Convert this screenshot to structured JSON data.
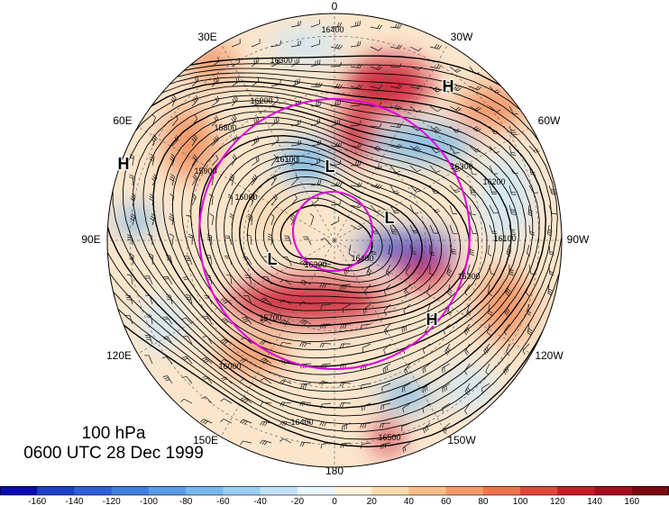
{
  "map": {
    "projection": "north polar stereographic",
    "longitude_labels": [
      "0",
      "30W",
      "60W",
      "90W",
      "120W",
      "150W",
      "180",
      "150E",
      "120E",
      "90E",
      "60E",
      "30E"
    ],
    "contour_labels": [
      "16400",
      "16300",
      "16200",
      "16100",
      "16000",
      "15900",
      "15800",
      "15700",
      "16300",
      "16400",
      "16300",
      "16100",
      "16200",
      "16300",
      "16000",
      "16400",
      "16500"
    ],
    "pressure_centers": [
      {
        "type": "H",
        "region": "north Atlantic"
      },
      {
        "type": "H",
        "region": "northern Eurasia"
      },
      {
        "type": "L",
        "region": "north Europe"
      },
      {
        "type": "L",
        "region": "Canadian Arctic"
      },
      {
        "type": "L",
        "region": "Siberia"
      },
      {
        "type": "H",
        "region": "Alaska / north Pacific"
      }
    ],
    "colors": {
      "strong_positive": "#c8102a",
      "moderate_positive": "#f08a5a",
      "weak_positive": "#fbd9b5",
      "weak_negative": "#cde8f8",
      "moderate_negative": "#6fb4ea",
      "strong_negative": "#1f3fc4",
      "circles": "#e000e0"
    }
  },
  "caption": {
    "level": "100 hPa",
    "datetime": "0600 UTC 28 Dec 1999"
  },
  "colorbar": {
    "ticks": [
      "-160",
      "-140",
      "-120",
      "-100",
      "-80",
      "-60",
      "-40",
      "-20",
      "0",
      "20",
      "40",
      "60",
      "80",
      "100",
      "120",
      "140",
      "160"
    ],
    "colors": [
      "#0a0ab4",
      "#1f3fc4",
      "#2f5fd6",
      "#3f7fe0",
      "#5a9ce8",
      "#78b6ee",
      "#9ccdf3",
      "#c3e2f8",
      "#e8f5fc",
      "#fdf3d8",
      "#fbdcb0",
      "#f7bd88",
      "#f39a68",
      "#ee7550",
      "#e0463a",
      "#c81c2a",
      "#a50f1f",
      "#7a0a10"
    ]
  }
}
